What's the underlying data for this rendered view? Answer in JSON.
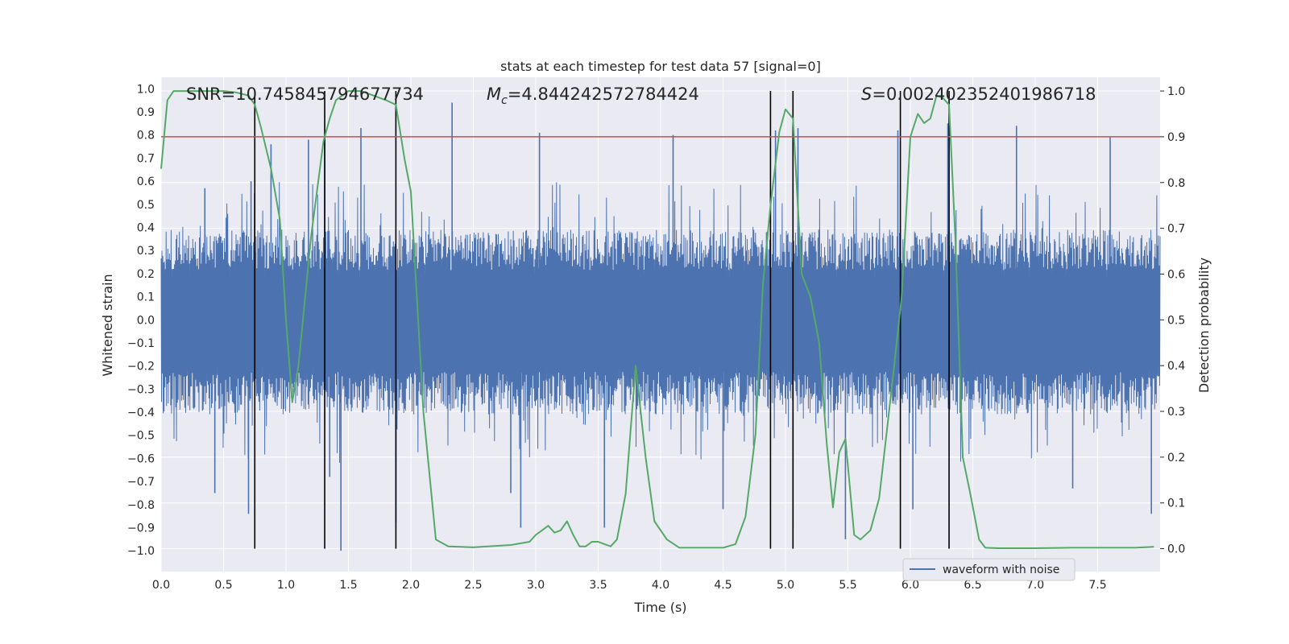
{
  "chart_data": {
    "type": "line",
    "title": "stats at each timestep for test data 57 [signal=0]",
    "xlabel": "Time (s)",
    "ylabel_left": "Whitened strain",
    "ylabel_right": "Detection probability",
    "xlim": [
      0.0,
      8.0
    ],
    "ylim_left": [
      -1.09,
      1.05
    ],
    "ylim_right": [
      -0.05,
      1.03
    ],
    "x_ticks": [
      "0.0",
      "0.5",
      "1.0",
      "1.5",
      "2.0",
      "2.5",
      "3.0",
      "3.5",
      "4.0",
      "4.5",
      "5.0",
      "5.5",
      "6.0",
      "6.5",
      "7.0",
      "7.5"
    ],
    "y_ticks_left": [
      "1.0",
      "0.9",
      "0.8",
      "0.7",
      "0.6",
      "0.5",
      "0.4",
      "0.3",
      "0.2",
      "0.1",
      "0.0",
      "-0.1",
      "-0.2",
      "-0.3",
      "-0.4",
      "-0.5",
      "-0.6",
      "-0.7",
      "-0.8",
      "-0.9",
      "-1.0"
    ],
    "y_ticks_right": [
      "1.0",
      "0.9",
      "0.8",
      "0.7",
      "0.6",
      "0.5",
      "0.4",
      "0.3",
      "0.2",
      "0.1",
      "0.0"
    ],
    "grid": true,
    "legend_position": "lower-right",
    "annotations": {
      "snr": "SNR=10.745845794677734",
      "mc_symbol": "M",
      "mc_subscript": "c",
      "mc_value": "=4.844242572784424",
      "s_symbol": "S",
      "s_value": "=0.002402352401986718"
    },
    "series": [
      {
        "name": "waveform with noise",
        "axis": "left",
        "color": "#4c72b0",
        "description_values": {
          "core_envelope": [
            -0.41,
            0.39
          ],
          "max_peak": 0.94,
          "min_peak": -1.0
        },
        "peaks": [
          {
            "x": 0.35,
            "y": 0.57
          },
          {
            "x": 0.72,
            "y": 0.6
          },
          {
            "x": 0.88,
            "y": 0.76
          },
          {
            "x": 1.18,
            "y": 0.78
          },
          {
            "x": 1.31,
            "y": 0.8
          },
          {
            "x": 1.6,
            "y": 0.83
          },
          {
            "x": 2.33,
            "y": 0.94
          },
          {
            "x": 3.03,
            "y": 0.81
          },
          {
            "x": 4.1,
            "y": 0.8
          },
          {
            "x": 4.92,
            "y": 0.82
          },
          {
            "x": 5.1,
            "y": 0.83
          },
          {
            "x": 5.9,
            "y": 0.82
          },
          {
            "x": 6.3,
            "y": 0.85
          },
          {
            "x": 6.85,
            "y": 0.84
          },
          {
            "x": 7.6,
            "y": 0.79
          }
        ],
        "troughs": [
          {
            "x": 0.43,
            "y": -0.75
          },
          {
            "x": 0.7,
            "y": -0.84
          },
          {
            "x": 1.35,
            "y": -0.68
          },
          {
            "x": 1.44,
            "y": -1.0
          },
          {
            "x": 1.88,
            "y": -0.88
          },
          {
            "x": 2.8,
            "y": -0.75
          },
          {
            "x": 2.88,
            "y": -0.9
          },
          {
            "x": 3.55,
            "y": -0.9
          },
          {
            "x": 4.5,
            "y": -0.82
          },
          {
            "x": 5.06,
            "y": -0.9
          },
          {
            "x": 5.48,
            "y": -0.95
          },
          {
            "x": 6.02,
            "y": -0.82
          },
          {
            "x": 7.3,
            "y": -0.73
          },
          {
            "x": 7.93,
            "y": -0.84
          }
        ]
      },
      {
        "name": "",
        "axis": "right",
        "color": "#55a868",
        "x": [
          0.0,
          0.05,
          0.1,
          0.2,
          0.3,
          0.4,
          0.5,
          0.6,
          0.7,
          0.75,
          0.8,
          0.88,
          0.95,
          1.0,
          1.05,
          1.1,
          1.2,
          1.3,
          1.35,
          1.4,
          1.5,
          1.6,
          1.7,
          1.8,
          1.88,
          1.95,
          2.0,
          2.1,
          2.2,
          2.3,
          2.5,
          2.8,
          2.95,
          3.0,
          3.05,
          3.1,
          3.15,
          3.2,
          3.25,
          3.3,
          3.35,
          3.4,
          3.45,
          3.5,
          3.55,
          3.6,
          3.65,
          3.72,
          3.8,
          3.88,
          3.95,
          4.05,
          4.15,
          4.5,
          4.6,
          4.68,
          4.76,
          4.82,
          4.88,
          4.95,
          5.0,
          5.06,
          5.13,
          5.2,
          5.27,
          5.33,
          5.38,
          5.43,
          5.48,
          5.55,
          5.6,
          5.68,
          5.75,
          5.85,
          5.93,
          6.0,
          6.06,
          6.11,
          6.16,
          6.21,
          6.26,
          6.31,
          6.36,
          6.42,
          6.48,
          6.55,
          6.6,
          6.7,
          7.0,
          7.3,
          7.6,
          7.8,
          7.95
        ],
        "y": [
          0.83,
          0.98,
          1.0,
          1.0,
          1.0,
          1.0,
          1.0,
          0.997,
          0.99,
          0.97,
          0.92,
          0.83,
          0.72,
          0.5,
          0.32,
          0.4,
          0.68,
          0.89,
          0.94,
          0.98,
          1.0,
          1.0,
          0.99,
          0.98,
          0.97,
          0.85,
          0.78,
          0.3,
          0.02,
          0.005,
          0.003,
          0.008,
          0.015,
          0.03,
          0.04,
          0.05,
          0.035,
          0.04,
          0.06,
          0.03,
          0.005,
          0.005,
          0.015,
          0.015,
          0.01,
          0.005,
          0.02,
          0.12,
          0.4,
          0.2,
          0.06,
          0.02,
          0.002,
          0.002,
          0.01,
          0.07,
          0.25,
          0.58,
          0.75,
          0.91,
          0.96,
          0.94,
          0.6,
          0.55,
          0.45,
          0.23,
          0.09,
          0.21,
          0.24,
          0.03,
          0.02,
          0.04,
          0.11,
          0.35,
          0.55,
          0.9,
          0.95,
          0.93,
          0.94,
          0.99,
          0.985,
          0.97,
          0.68,
          0.2,
          0.12,
          0.02,
          0.002,
          0.001,
          0.001,
          0.002,
          0.002,
          0.002,
          0.004
        ]
      },
      {
        "name": "",
        "axis": "right",
        "kind": "hline",
        "color": "#c44e52",
        "y": 0.9
      }
    ],
    "vlines": [
      0.75,
      1.31,
      1.88,
      4.88,
      5.06,
      5.92,
      6.31
    ],
    "vlines_range_right": [
      0.0,
      1.0
    ],
    "vlines_color": "#000000",
    "style_colors": {
      "axes_bg": "#eaeaf2",
      "grid": "#ffffff",
      "figure_bg": "#ffffff"
    }
  }
}
